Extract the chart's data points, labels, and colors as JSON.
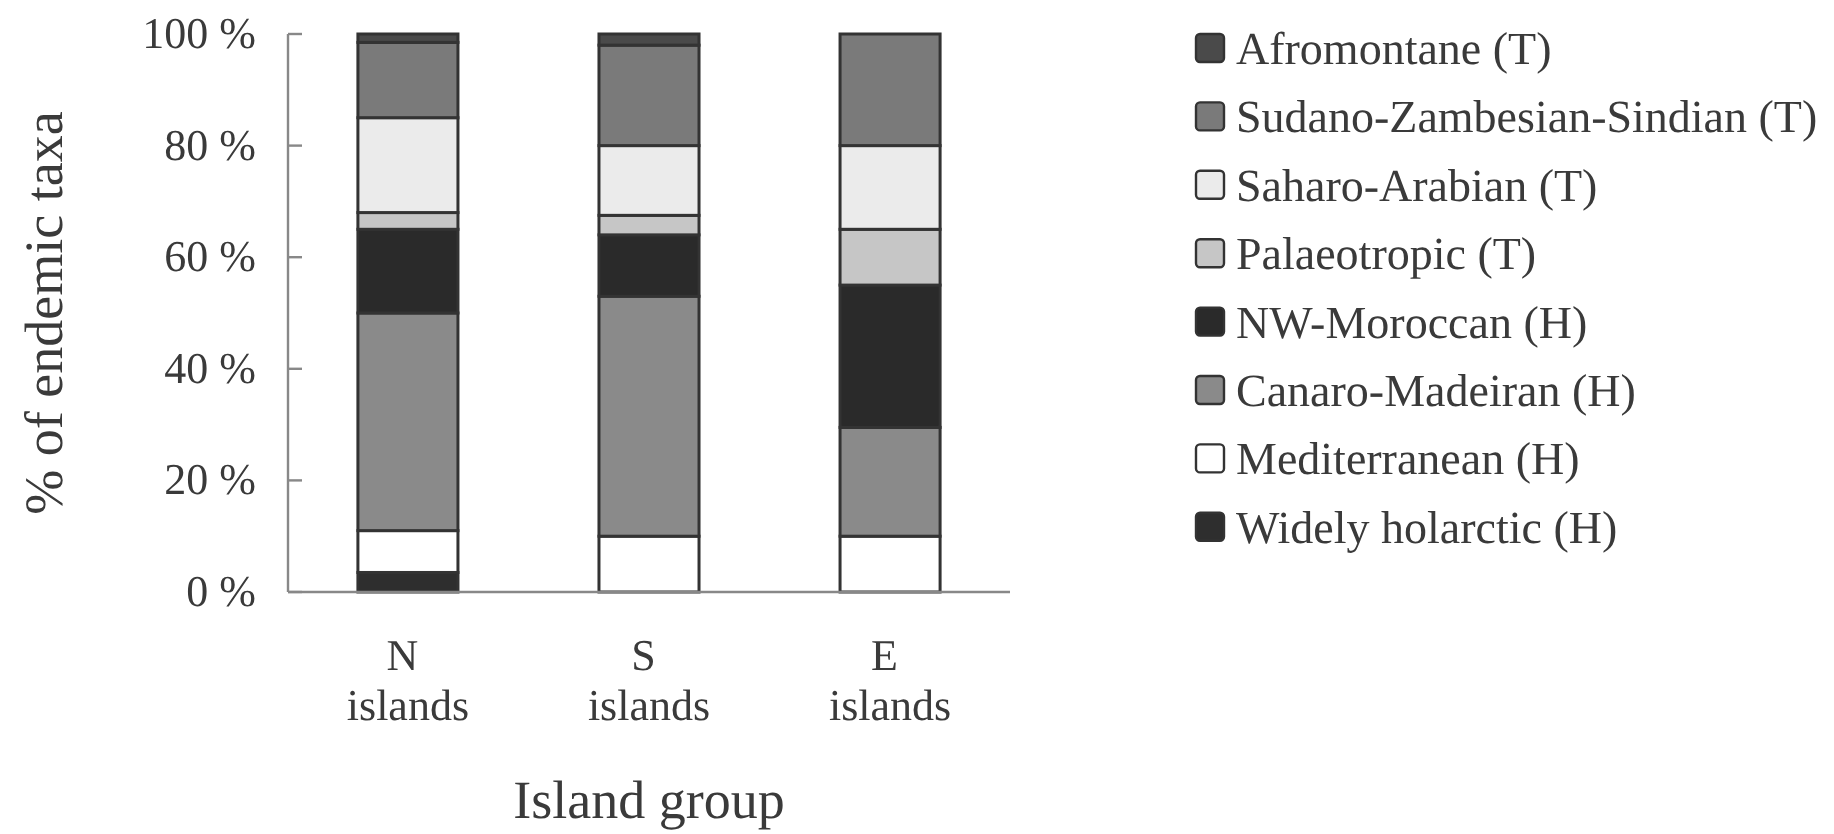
{
  "chart_data": {
    "type": "bar",
    "stacked": true,
    "categories": [
      "N islands",
      "S islands",
      "E islands"
    ],
    "xlabel": "Island group",
    "ylabel": "% of endemic taxa",
    "ylim": [
      0,
      100
    ],
    "yticks": [
      {
        "value": 0,
        "label": "0 %"
      },
      {
        "value": 20,
        "label": "20 %"
      },
      {
        "value": 40,
        "label": "40 %"
      },
      {
        "value": 60,
        "label": "60 %"
      },
      {
        "value": 80,
        "label": "80 %"
      },
      {
        "value": 100,
        "label": "100 %"
      }
    ],
    "legend": "right",
    "series": [
      {
        "name": "Widely holarctic (H)",
        "color": "#2e2e2e",
        "values": [
          3.5,
          0,
          0
        ]
      },
      {
        "name": "Mediterranean (H)",
        "color": "#ffffff",
        "values": [
          7.5,
          10,
          10
        ]
      },
      {
        "name": "Canaro-Madeiran (H)",
        "color": "#8a8a8a",
        "values": [
          39,
          43,
          19.5
        ]
      },
      {
        "name": "NW-Moroccan (H)",
        "color": "#2a2a2a",
        "values": [
          15,
          11,
          25.5
        ]
      },
      {
        "name": "Palaeotropic (T)",
        "color": "#c6c6c6",
        "values": [
          3,
          3.5,
          10
        ]
      },
      {
        "name": "Saharo-Arabian (T)",
        "color": "#ebebeb",
        "values": [
          17,
          12.5,
          15
        ]
      },
      {
        "name": "Sudano-Zambesian-Sindian (T)",
        "color": "#7a7a7a",
        "values": [
          13.5,
          18,
          20
        ]
      },
      {
        "name": "Afromontane (T)",
        "color": "#4a4a4a",
        "values": [
          1.5,
          2,
          0
        ]
      }
    ]
  }
}
